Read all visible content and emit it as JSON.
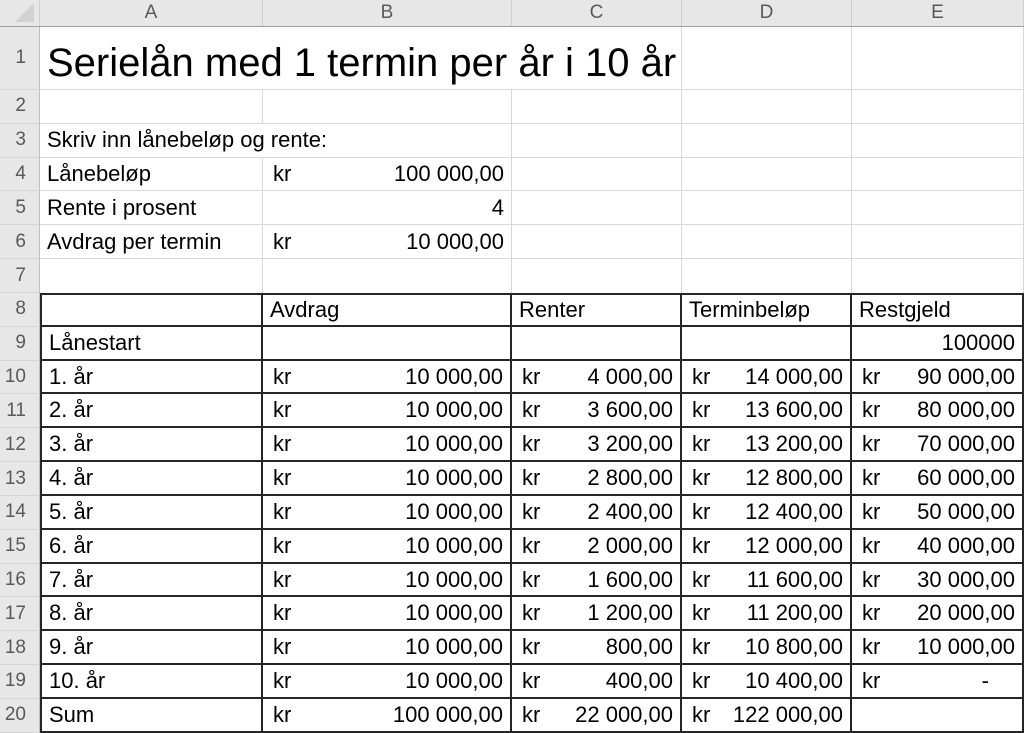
{
  "sheet": {
    "columns": [
      "A",
      "B",
      "C",
      "D",
      "E"
    ],
    "rows": [
      {
        "n": "1",
        "title_row": true,
        "cells": [
          {
            "cols": "ABC",
            "t": "text",
            "cls": "title",
            "v": "Serielån med 1 termin per år i 10 år"
          },
          {
            "cols": "D",
            "t": "empty"
          },
          {
            "cols": "E",
            "t": "empty"
          }
        ]
      },
      {
        "n": "2",
        "cells": [
          {
            "cols": "A",
            "t": "empty"
          },
          {
            "cols": "B",
            "t": "empty"
          },
          {
            "cols": "C",
            "t": "empty"
          },
          {
            "cols": "D",
            "t": "empty"
          },
          {
            "cols": "E",
            "t": "empty"
          }
        ]
      },
      {
        "n": "3",
        "cells": [
          {
            "cols": "AB",
            "t": "text",
            "v": "Skriv inn lånebeløp og rente:"
          },
          {
            "cols": "C",
            "t": "empty"
          },
          {
            "cols": "D",
            "t": "empty"
          },
          {
            "cols": "E",
            "t": "empty"
          }
        ]
      },
      {
        "n": "4",
        "cells": [
          {
            "cols": "A",
            "t": "text",
            "v": "Lånebeløp"
          },
          {
            "cols": "B",
            "t": "acc",
            "kr": "kr",
            "v": "100 000,00"
          },
          {
            "cols": "C",
            "t": "empty"
          },
          {
            "cols": "D",
            "t": "empty"
          },
          {
            "cols": "E",
            "t": "empty"
          }
        ]
      },
      {
        "n": "5",
        "cells": [
          {
            "cols": "A",
            "t": "text",
            "v": "Rente i prosent"
          },
          {
            "cols": "B",
            "t": "num",
            "v": "4"
          },
          {
            "cols": "C",
            "t": "empty"
          },
          {
            "cols": "D",
            "t": "empty"
          },
          {
            "cols": "E",
            "t": "empty"
          }
        ]
      },
      {
        "n": "6",
        "cells": [
          {
            "cols": "A",
            "t": "text",
            "v": "Avdrag per termin"
          },
          {
            "cols": "B",
            "t": "acc",
            "kr": "kr",
            "v": "10 000,00"
          },
          {
            "cols": "C",
            "t": "empty"
          },
          {
            "cols": "D",
            "t": "empty"
          },
          {
            "cols": "E",
            "t": "empty"
          }
        ]
      },
      {
        "n": "7",
        "no_bottom": true,
        "cells": [
          {
            "cols": "A",
            "t": "empty"
          },
          {
            "cols": "B",
            "t": "empty"
          },
          {
            "cols": "C",
            "t": "empty"
          },
          {
            "cols": "D",
            "t": "empty"
          },
          {
            "cols": "E",
            "t": "empty"
          }
        ]
      },
      {
        "n": "8",
        "bordered": true,
        "first_bordered": true,
        "cells": [
          {
            "cols": "A",
            "t": "empty"
          },
          {
            "cols": "B",
            "t": "text",
            "v": "Avdrag"
          },
          {
            "cols": "C",
            "t": "text",
            "v": "Renter"
          },
          {
            "cols": "D",
            "t": "text",
            "v": "Terminbeløp"
          },
          {
            "cols": "E",
            "t": "text",
            "v": "Restgjeld"
          }
        ]
      },
      {
        "n": "9",
        "bordered": true,
        "cells": [
          {
            "cols": "A",
            "t": "text",
            "v": "Lånestart"
          },
          {
            "cols": "B",
            "t": "empty"
          },
          {
            "cols": "C",
            "t": "empty"
          },
          {
            "cols": "D",
            "t": "empty"
          },
          {
            "cols": "E",
            "t": "num",
            "v": "100000"
          }
        ]
      },
      {
        "n": "10",
        "bordered": true,
        "cells": [
          {
            "cols": "A",
            "t": "text",
            "v": "1. år"
          },
          {
            "cols": "B",
            "t": "acc",
            "kr": "kr",
            "v": "10 000,00"
          },
          {
            "cols": "C",
            "t": "acc",
            "kr": "kr",
            "v": "4 000,00"
          },
          {
            "cols": "D",
            "t": "acc",
            "kr": "kr",
            "v": "14 000,00"
          },
          {
            "cols": "E",
            "t": "acc",
            "kr": "kr",
            "v": "90 000,00"
          }
        ]
      },
      {
        "n": "11",
        "bordered": true,
        "cells": [
          {
            "cols": "A",
            "t": "text",
            "v": "2. år"
          },
          {
            "cols": "B",
            "t": "acc",
            "kr": "kr",
            "v": "10 000,00"
          },
          {
            "cols": "C",
            "t": "acc",
            "kr": "kr",
            "v": "3 600,00"
          },
          {
            "cols": "D",
            "t": "acc",
            "kr": "kr",
            "v": "13 600,00"
          },
          {
            "cols": "E",
            "t": "acc",
            "kr": "kr",
            "v": "80 000,00"
          }
        ]
      },
      {
        "n": "12",
        "bordered": true,
        "cells": [
          {
            "cols": "A",
            "t": "text",
            "v": "3. år"
          },
          {
            "cols": "B",
            "t": "acc",
            "kr": "kr",
            "v": "10 000,00"
          },
          {
            "cols": "C",
            "t": "acc",
            "kr": "kr",
            "v": "3 200,00"
          },
          {
            "cols": "D",
            "t": "acc",
            "kr": "kr",
            "v": "13 200,00"
          },
          {
            "cols": "E",
            "t": "acc",
            "kr": "kr",
            "v": "70 000,00"
          }
        ]
      },
      {
        "n": "13",
        "bordered": true,
        "cells": [
          {
            "cols": "A",
            "t": "text",
            "v": "4. år"
          },
          {
            "cols": "B",
            "t": "acc",
            "kr": "kr",
            "v": "10 000,00"
          },
          {
            "cols": "C",
            "t": "acc",
            "kr": "kr",
            "v": "2 800,00"
          },
          {
            "cols": "D",
            "t": "acc",
            "kr": "kr",
            "v": "12 800,00"
          },
          {
            "cols": "E",
            "t": "acc",
            "kr": "kr",
            "v": "60 000,00"
          }
        ]
      },
      {
        "n": "14",
        "bordered": true,
        "cells": [
          {
            "cols": "A",
            "t": "text",
            "v": "5. år"
          },
          {
            "cols": "B",
            "t": "acc",
            "kr": "kr",
            "v": "10 000,00"
          },
          {
            "cols": "C",
            "t": "acc",
            "kr": "kr",
            "v": "2 400,00"
          },
          {
            "cols": "D",
            "t": "acc",
            "kr": "kr",
            "v": "12 400,00"
          },
          {
            "cols": "E",
            "t": "acc",
            "kr": "kr",
            "v": "50 000,00"
          }
        ]
      },
      {
        "n": "15",
        "bordered": true,
        "cells": [
          {
            "cols": "A",
            "t": "text",
            "v": "6. år"
          },
          {
            "cols": "B",
            "t": "acc",
            "kr": "kr",
            "v": "10 000,00"
          },
          {
            "cols": "C",
            "t": "acc",
            "kr": "kr",
            "v": "2 000,00"
          },
          {
            "cols": "D",
            "t": "acc",
            "kr": "kr",
            "v": "12 000,00"
          },
          {
            "cols": "E",
            "t": "acc",
            "kr": "kr",
            "v": "40 000,00"
          }
        ]
      },
      {
        "n": "16",
        "bordered": true,
        "cells": [
          {
            "cols": "A",
            "t": "text",
            "v": "7. år"
          },
          {
            "cols": "B",
            "t": "acc",
            "kr": "kr",
            "v": "10 000,00"
          },
          {
            "cols": "C",
            "t": "acc",
            "kr": "kr",
            "v": "1 600,00"
          },
          {
            "cols": "D",
            "t": "acc",
            "kr": "kr",
            "v": "11 600,00"
          },
          {
            "cols": "E",
            "t": "acc",
            "kr": "kr",
            "v": "30 000,00"
          }
        ]
      },
      {
        "n": "17",
        "bordered": true,
        "cells": [
          {
            "cols": "A",
            "t": "text",
            "v": "8. år"
          },
          {
            "cols": "B",
            "t": "acc",
            "kr": "kr",
            "v": "10 000,00"
          },
          {
            "cols": "C",
            "t": "acc",
            "kr": "kr",
            "v": "1 200,00"
          },
          {
            "cols": "D",
            "t": "acc",
            "kr": "kr",
            "v": "11 200,00"
          },
          {
            "cols": "E",
            "t": "acc",
            "kr": "kr",
            "v": "20 000,00"
          }
        ]
      },
      {
        "n": "18",
        "bordered": true,
        "cells": [
          {
            "cols": "A",
            "t": "text",
            "v": "9. år"
          },
          {
            "cols": "B",
            "t": "acc",
            "kr": "kr",
            "v": "10 000,00"
          },
          {
            "cols": "C",
            "t": "acc",
            "kr": "kr",
            "v": "800,00"
          },
          {
            "cols": "D",
            "t": "acc",
            "kr": "kr",
            "v": "10 800,00"
          },
          {
            "cols": "E",
            "t": "acc",
            "kr": "kr",
            "v": "10 000,00"
          }
        ]
      },
      {
        "n": "19",
        "bordered": true,
        "cells": [
          {
            "cols": "A",
            "t": "text",
            "v": "10. år"
          },
          {
            "cols": "B",
            "t": "acc",
            "kr": "kr",
            "v": "10 000,00"
          },
          {
            "cols": "C",
            "t": "acc",
            "kr": "kr",
            "v": "400,00"
          },
          {
            "cols": "D",
            "t": "acc",
            "kr": "kr",
            "v": "10 400,00"
          },
          {
            "cols": "E",
            "t": "accdash",
            "kr": "kr",
            "v": "-"
          }
        ]
      },
      {
        "n": "20",
        "bordered": true,
        "cells": [
          {
            "cols": "A",
            "t": "text",
            "v": "Sum"
          },
          {
            "cols": "B",
            "t": "acc",
            "kr": "kr",
            "v": "100 000,00"
          },
          {
            "cols": "C",
            "t": "acc",
            "kr": "kr",
            "v": "22 000,00"
          },
          {
            "cols": "D",
            "t": "acc",
            "kr": "kr",
            "v": "122 000,00"
          },
          {
            "cols": "E",
            "t": "empty"
          }
        ]
      }
    ]
  }
}
